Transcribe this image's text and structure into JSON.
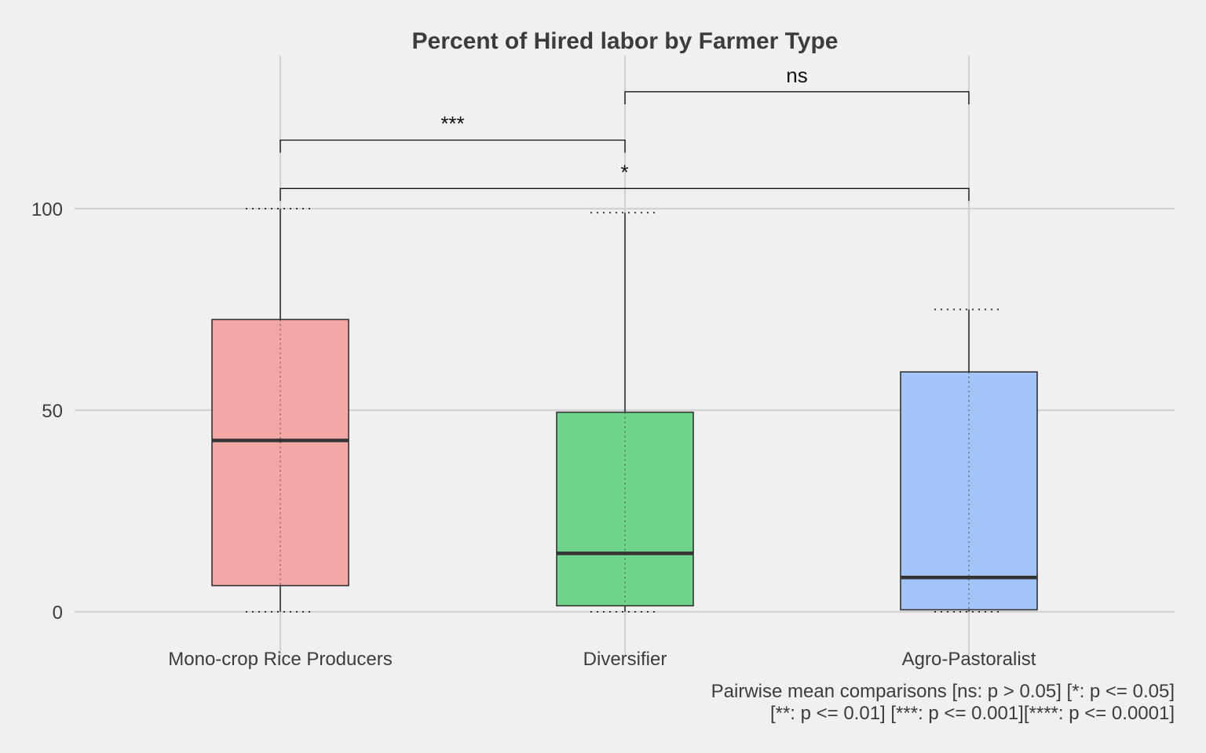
{
  "chart_data": {
    "type": "boxplot",
    "title": "Percent of Hired labor by Farmer Type",
    "xlabel": "",
    "ylabel": "",
    "ylim": [
      -5,
      138
    ],
    "yticks": [
      0,
      50,
      100
    ],
    "ytick_labels": [
      "0",
      "50",
      "100"
    ],
    "grid": true,
    "legend": "none",
    "categories": [
      "Mono-crop Rice Producers",
      "Diversifier",
      "Agro-Pastoralist"
    ],
    "boxes": [
      {
        "category": "Mono-crop Rice Producers",
        "min": 0,
        "q1": 6.5,
        "median": 42.5,
        "q3": 72.5,
        "max": 100,
        "color": "#f4a8a6"
      },
      {
        "category": "Diversifier",
        "min": 0,
        "q1": 1.5,
        "median": 14.5,
        "q3": 49.5,
        "max": 99,
        "color": "#6fd58a"
      },
      {
        "category": "Agro-Pastoralist",
        "min": 0,
        "q1": 0.5,
        "median": 8.5,
        "q3": 59.5,
        "max": 75,
        "color": "#a3c4f7"
      }
    ],
    "comparisons": [
      {
        "from": 0,
        "to": 1,
        "y": 117,
        "label": "***"
      },
      {
        "from": 1,
        "to": 2,
        "y": 129,
        "label": "ns"
      },
      {
        "from": 0,
        "to": 2,
        "y": 105,
        "label": "*"
      }
    ],
    "caption": [
      "Pairwise mean comparisons [ns: p > 0.05] [*: p <= 0.05]",
      "[**: p <= 0.01] [***: p <= 0.001][****: p <= 0.0001]"
    ]
  },
  "colors": {
    "background": "#f0f0f0",
    "grid": "#d2d2d2",
    "text": "#3c3c3c",
    "box_stroke": "#333333",
    "median": "#333333"
  }
}
